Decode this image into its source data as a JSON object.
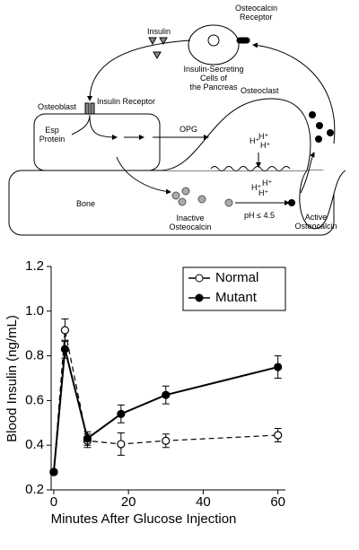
{
  "diagram": {
    "insulin": "Insulin",
    "osteocalcin_receptor": [
      "Osteocalcin",
      "Receptor"
    ],
    "pancreas": [
      "Insulin-Secreting",
      "Cells of",
      "the Pancreas"
    ],
    "osteoblast": "Osteoblast",
    "insulin_receptor": "Insulin Receptor",
    "esp_protein": [
      "Esp",
      "Protein"
    ],
    "opg": "OPG",
    "osteoclast": "Osteoclast",
    "h_ions": [
      "H⁺",
      "H⁺",
      "H⁺",
      "H⁺",
      "H⁺",
      "H⁺"
    ],
    "bone": "Bone",
    "inactive_osteocalcin": [
      "Inactive",
      "Osteocalcin"
    ],
    "ph": "pH ≤ 4.5",
    "active_osteocalcin": [
      "Active",
      "Osteocalcin"
    ]
  },
  "chart_data": {
    "type": "line",
    "x_label": "Minutes After Glucose Injection",
    "y_label": "Blood Insulin (ng/mL)",
    "x": [
      0,
      3,
      9,
      18,
      30,
      60
    ],
    "series": [
      {
        "name": "Normal",
        "color": "#000000",
        "dashed": true,
        "filled": false,
        "values": [
          0.28,
          0.915,
          0.42,
          0.405,
          0.42,
          0.445
        ],
        "errors": [
          0.01,
          0.05,
          0.03,
          0.05,
          0.03,
          0.03
        ]
      },
      {
        "name": "Mutant",
        "color": "#000000",
        "dashed": false,
        "filled": true,
        "values": [
          0.28,
          0.83,
          0.43,
          0.54,
          0.625,
          0.75
        ],
        "errors": [
          0.01,
          0.04,
          0.03,
          0.04,
          0.04,
          0.05
        ]
      }
    ],
    "xlim": [
      -0.7,
      62
    ],
    "ylim": [
      0.2,
      1.2
    ],
    "xticks": [
      0,
      20,
      40,
      60
    ],
    "yticks": [
      0.2,
      0.4,
      0.6,
      0.8,
      {
        "value": 1,
        "label": "1.0"
      },
      1.2
    ],
    "legend": "upper right"
  }
}
